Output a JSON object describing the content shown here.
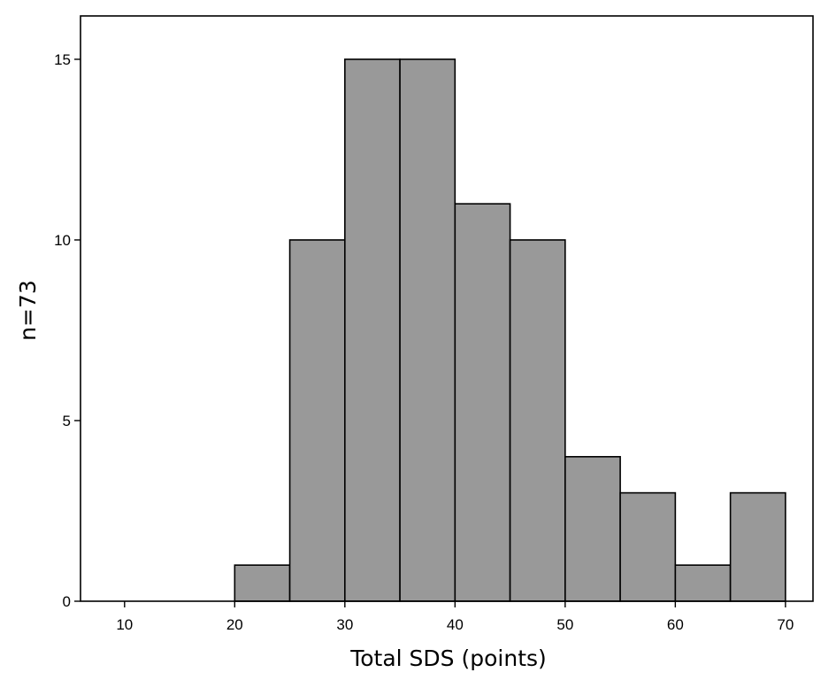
{
  "chart_data": {
    "type": "bar",
    "subtype": "histogram",
    "title": "",
    "xlabel": "Total SDS (points)",
    "ylabel": "n=73",
    "bins": [
      {
        "start": 20,
        "end": 25,
        "count": 1
      },
      {
        "start": 25,
        "end": 30,
        "count": 10
      },
      {
        "start": 30,
        "end": 35,
        "count": 15
      },
      {
        "start": 35,
        "end": 40,
        "count": 15
      },
      {
        "start": 40,
        "end": 45,
        "count": 11
      },
      {
        "start": 45,
        "end": 50,
        "count": 10
      },
      {
        "start": 50,
        "end": 55,
        "count": 4
      },
      {
        "start": 55,
        "end": 60,
        "count": 3
      },
      {
        "start": 60,
        "end": 65,
        "count": 1
      },
      {
        "start": 65,
        "end": 70,
        "count": 3
      }
    ],
    "xticks": [
      10,
      20,
      30,
      40,
      50,
      60,
      70
    ],
    "yticks": [
      0,
      5,
      10,
      15
    ],
    "xlim": [
      6,
      72.5
    ],
    "ylim": [
      0,
      16.2
    ],
    "grid": false,
    "legend": "none",
    "bar_color": "#999999",
    "bar_edge_color": "#000000"
  }
}
